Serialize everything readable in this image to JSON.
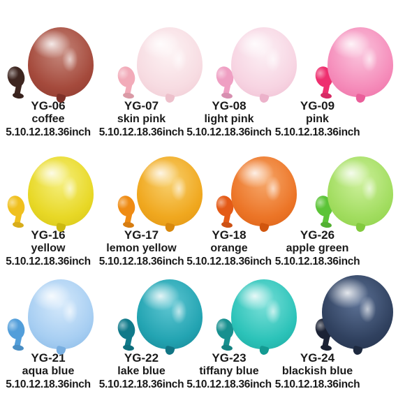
{
  "products": [
    {
      "code": "YG-06",
      "color_name": "coffee",
      "sizes": "5.10.12.18.36inch",
      "colors": {
        "body": "#a54a3c",
        "body_dark": "#7e3128",
        "body_light": "#c5887c",
        "mini": "#3e2620"
      }
    },
    {
      "code": "YG-07",
      "color_name": "skin pink",
      "sizes": "5.10.12.18.36inch",
      "colors": {
        "body": "#f7dce2",
        "body_dark": "#edc0cb",
        "body_light": "#fdf3f4",
        "mini": "#f2abb9"
      }
    },
    {
      "code": "YG-08",
      "color_name": "light pink",
      "sizes": "5.10.12.18.36inch",
      "colors": {
        "body": "#f7d4e2",
        "body_dark": "#ecb2ca",
        "body_light": "#fcf0f5",
        "mini": "#ef9fc3"
      }
    },
    {
      "code": "YG-09",
      "color_name": "pink",
      "sizes": "5.10.12.18.36inch",
      "colors": {
        "body": "#f58cba",
        "body_dark": "#ea5e9a",
        "body_light": "#fac5dd",
        "mini": "#ee2f6f"
      }
    },
    {
      "code": "YG-16",
      "color_name": "yellow",
      "sizes": "5.10.12.18.36inch",
      "colors": {
        "body": "#e8d826",
        "body_dark": "#ccb910",
        "body_light": "#f5ef7d",
        "mini": "#f0c01e"
      }
    },
    {
      "code": "YG-17",
      "color_name": "lemon yellow",
      "sizes": "5.10.12.18.36inch",
      "colors": {
        "body": "#f0a81f",
        "body_dark": "#d8890e",
        "body_light": "#f8d06e",
        "mini": "#ef8b13"
      }
    },
    {
      "code": "YG-18",
      "color_name": "orange",
      "sizes": "5.10.12.18.36inch",
      "colors": {
        "body": "#ec7527",
        "body_dark": "#d1560e",
        "body_light": "#f6a76a",
        "mini": "#e45a16"
      }
    },
    {
      "code": "YG-26",
      "color_name": "apple green",
      "sizes": "5.10.12.18.36inch",
      "colors": {
        "body": "#a2dd60",
        "body_dark": "#82ca3d",
        "body_light": "#cdf09c",
        "mini": "#5cc437"
      }
    },
    {
      "code": "YG-21",
      "color_name": "aqua blue",
      "sizes": "5.10.12.18.36inch",
      "colors": {
        "body": "#a7cef2",
        "body_dark": "#78aee0",
        "body_light": "#d5e9fb",
        "mini": "#529eda"
      }
    },
    {
      "code": "YG-22",
      "color_name": "lake blue",
      "sizes": "5.10.12.18.36inch",
      "colors": {
        "body": "#23a4b2",
        "body_dark": "#117584",
        "body_light": "#5fc6d2",
        "mini": "#107a8a"
      }
    },
    {
      "code": "YG-23",
      "color_name": "tiffany blue",
      "sizes": "5.10.12.18.36inch",
      "colors": {
        "body": "#2cc3b9",
        "body_dark": "#149a92",
        "body_light": "#7adfd8",
        "mini": "#17908f"
      }
    },
    {
      "code": "YG-24",
      "color_name": "blackish blue",
      "sizes": "5.10.12.18.36inch",
      "colors": {
        "body": "#30415f",
        "body_dark": "#1d293f",
        "body_light": "#5d7296",
        "mini": "#1b2235"
      }
    }
  ]
}
